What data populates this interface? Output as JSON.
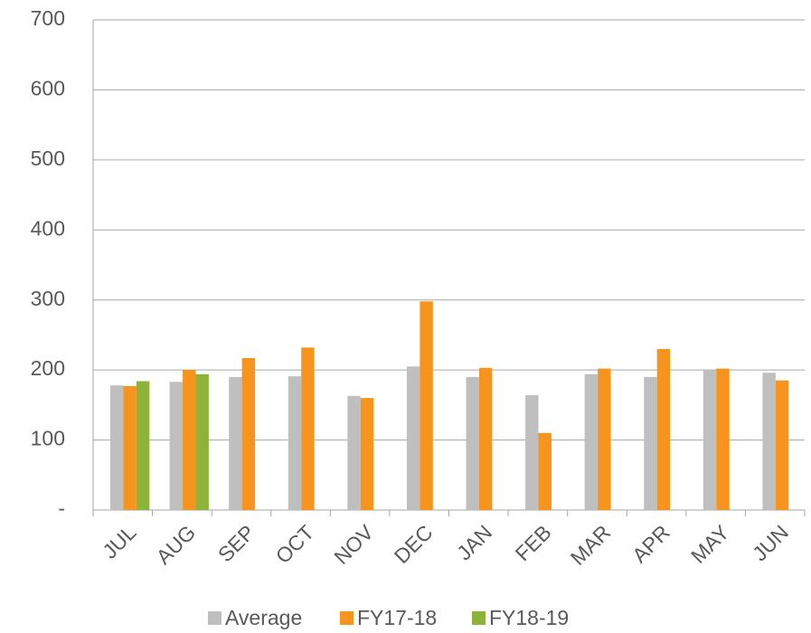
{
  "chart_data": {
    "type": "bar",
    "categories": [
      "JUL",
      "AUG",
      "SEP",
      "OCT",
      "NOV",
      "DEC",
      "JAN",
      "FEB",
      "MAR",
      "APR",
      "MAY",
      "JUN"
    ],
    "series": [
      {
        "name": "Average",
        "color": "#bfbfbf",
        "values": [
          178,
          183,
          190,
          191,
          163,
          205,
          190,
          164,
          194,
          190,
          200,
          196
        ]
      },
      {
        "name": "FY17-18",
        "color": "#f7941d",
        "values": [
          177,
          200,
          217,
          232,
          160,
          298,
          203,
          110,
          202,
          230,
          202,
          185
        ]
      },
      {
        "name": "FY18-19",
        "color": "#8db33a",
        "values": [
          184,
          194,
          null,
          null,
          null,
          null,
          null,
          null,
          null,
          null,
          null,
          null
        ]
      }
    ],
    "ylim": [
      0,
      700
    ],
    "yticks": [
      {
        "value": 0,
        "label": "-"
      },
      100,
      200,
      300,
      400,
      500,
      600,
      700
    ],
    "grid": true,
    "legend": "bottom"
  }
}
